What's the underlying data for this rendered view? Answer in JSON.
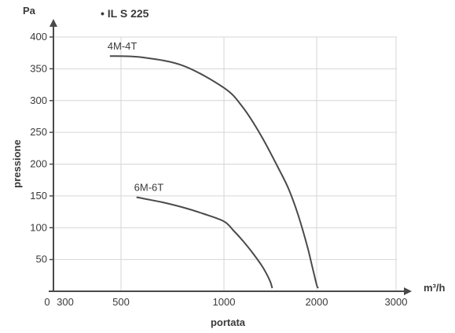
{
  "chart_data": {
    "type": "line",
    "title": "• IL S 225",
    "xlabel": "portata",
    "ylabel": "pressione",
    "x_unit": "m³/h",
    "y_unit": "Pa",
    "x_origin_label": "0",
    "xlim": [
      300,
      3000
    ],
    "ylim": [
      0,
      400
    ],
    "x_ticks": [
      300,
      500,
      1000,
      2000,
      3000
    ],
    "x_gridlines": [
      500,
      1000,
      2000,
      3000
    ],
    "y_ticks": [
      50,
      100,
      150,
      200,
      250,
      300,
      350,
      400
    ],
    "grid": true,
    "series": [
      {
        "name": "4M-4T",
        "x": [
          460,
          600,
          800,
          1000,
          1200,
          1400,
          1600,
          1700,
          1800,
          1900,
          1950,
          2000,
          2020
        ],
        "y": [
          370,
          368,
          355,
          320,
          290,
          245,
          190,
          160,
          120,
          70,
          40,
          10,
          5
        ]
      },
      {
        "name": "6M-6T",
        "x": [
          575,
          700,
          800,
          900,
          1000,
          1100,
          1200,
          1300,
          1400,
          1450,
          1500,
          1520
        ],
        "y": [
          148,
          140,
          132,
          122,
          110,
          96,
          80,
          62,
          42,
          30,
          15,
          5
        ]
      }
    ],
    "colors": {
      "line": "#4a4a4a",
      "axis": "#4a4a4a",
      "grid": "#d6d6d6",
      "text": "#3a3a3a"
    }
  }
}
